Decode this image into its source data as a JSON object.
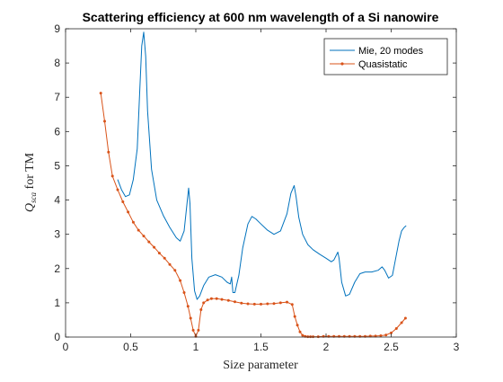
{
  "chart_data": {
    "type": "line",
    "title": "Scattering efficiency at 600 nm wavelength of a Si nanowire",
    "xlabel": "Size parameter",
    "ylabel_main": "Q",
    "ylabel_sub": "sca",
    "ylabel_rest": " for TM",
    "xlim": [
      0,
      3
    ],
    "ylim": [
      0,
      9
    ],
    "xticks": [
      0,
      0.5,
      1,
      1.5,
      2,
      2.5,
      3
    ],
    "xtick_labels": [
      "0",
      "0.5",
      "1",
      "1.5",
      "2",
      "2.5",
      "3"
    ],
    "yticks": [
      0,
      1,
      2,
      3,
      4,
      5,
      6,
      7,
      8,
      9
    ],
    "ytick_labels": [
      "0",
      "1",
      "2",
      "3",
      "4",
      "5",
      "6",
      "7",
      "8",
      "9"
    ],
    "grid": false,
    "legend_position": "top-right",
    "series": [
      {
        "name": "Mie, 20 modes",
        "color": "#0072BD",
        "marker": "none",
        "x": [
          0.4,
          0.43,
          0.46,
          0.49,
          0.52,
          0.55,
          0.57,
          0.585,
          0.6,
          0.615,
          0.63,
          0.66,
          0.7,
          0.75,
          0.8,
          0.85,
          0.88,
          0.91,
          0.93,
          0.945,
          0.955,
          0.97,
          0.99,
          1.01,
          1.03,
          1.06,
          1.1,
          1.15,
          1.2,
          1.24,
          1.265,
          1.275,
          1.285,
          1.3,
          1.33,
          1.36,
          1.4,
          1.43,
          1.46,
          1.5,
          1.55,
          1.6,
          1.65,
          1.7,
          1.73,
          1.755,
          1.77,
          1.79,
          1.82,
          1.86,
          1.9,
          1.95,
          2.0,
          2.04,
          2.06,
          2.08,
          2.09,
          2.1,
          2.12,
          2.15,
          2.18,
          2.22,
          2.26,
          2.3,
          2.35,
          2.4,
          2.43,
          2.45,
          2.48,
          2.51,
          2.53,
          2.56,
          2.58,
          2.6,
          2.615
        ],
        "y": [
          4.6,
          4.3,
          4.1,
          4.15,
          4.6,
          5.5,
          7.2,
          8.5,
          8.9,
          8.2,
          6.6,
          4.9,
          4.0,
          3.55,
          3.2,
          2.9,
          2.8,
          3.1,
          3.8,
          4.35,
          3.9,
          2.3,
          1.35,
          1.1,
          1.2,
          1.5,
          1.75,
          1.82,
          1.75,
          1.6,
          1.55,
          1.75,
          1.3,
          1.3,
          1.8,
          2.6,
          3.3,
          3.52,
          3.45,
          3.3,
          3.12,
          3.0,
          3.1,
          3.6,
          4.2,
          4.42,
          4.1,
          3.5,
          3.0,
          2.7,
          2.55,
          2.42,
          2.3,
          2.2,
          2.25,
          2.4,
          2.48,
          2.3,
          1.6,
          1.2,
          1.25,
          1.6,
          1.85,
          1.9,
          1.9,
          1.95,
          2.05,
          1.95,
          1.72,
          1.8,
          2.2,
          2.8,
          3.1,
          3.2,
          3.25
        ]
      },
      {
        "name": "Quasistatic",
        "color": "#D95319",
        "marker": "dot",
        "x": [
          0.27,
          0.3,
          0.33,
          0.36,
          0.4,
          0.44,
          0.48,
          0.52,
          0.56,
          0.6,
          0.64,
          0.68,
          0.72,
          0.76,
          0.8,
          0.84,
          0.88,
          0.91,
          0.94,
          0.96,
          0.98,
          1.0,
          1.02,
          1.04,
          1.06,
          1.09,
          1.12,
          1.16,
          1.2,
          1.25,
          1.3,
          1.35,
          1.4,
          1.45,
          1.5,
          1.55,
          1.6,
          1.65,
          1.7,
          1.74,
          1.76,
          1.78,
          1.8,
          1.82,
          1.84,
          1.86,
          1.88,
          1.9,
          1.94,
          1.98,
          2.02,
          2.06,
          2.1,
          2.14,
          2.18,
          2.22,
          2.26,
          2.3,
          2.34,
          2.38,
          2.42,
          2.46,
          2.5,
          2.54,
          2.58,
          2.61
        ],
        "y": [
          7.12,
          6.3,
          5.4,
          4.7,
          4.3,
          3.95,
          3.65,
          3.35,
          3.12,
          2.95,
          2.78,
          2.62,
          2.45,
          2.3,
          2.12,
          1.95,
          1.65,
          1.3,
          0.9,
          0.55,
          0.2,
          0.02,
          0.2,
          0.8,
          1.0,
          1.08,
          1.12,
          1.12,
          1.1,
          1.07,
          1.03,
          0.99,
          0.97,
          0.96,
          0.96,
          0.97,
          0.98,
          1.0,
          1.02,
          0.95,
          0.6,
          0.35,
          0.15,
          0.05,
          0.02,
          0.01,
          0.01,
          0.01,
          0.01,
          0.02,
          0.02,
          0.02,
          0.02,
          0.02,
          0.02,
          0.02,
          0.02,
          0.02,
          0.03,
          0.03,
          0.04,
          0.06,
          0.12,
          0.25,
          0.42,
          0.55
        ]
      }
    ]
  }
}
